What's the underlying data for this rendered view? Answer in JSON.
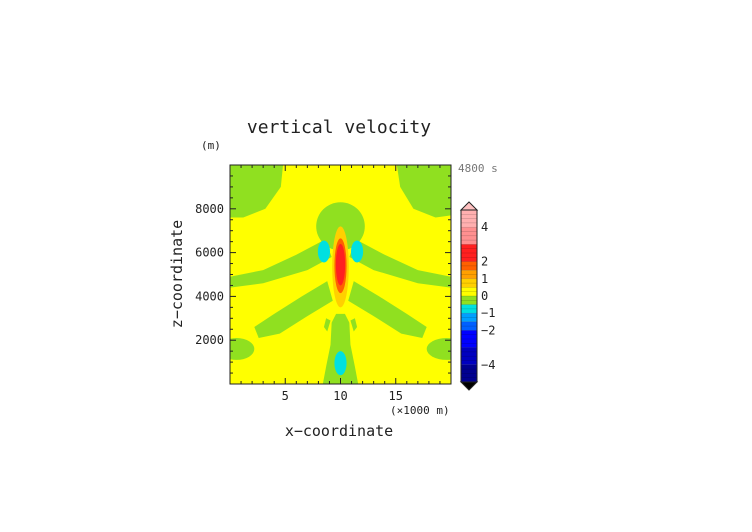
{
  "chart_data": {
    "type": "heatmap",
    "title": "vertical velocity",
    "xlabel": "x−coordinate",
    "ylabel": "z−coordinate",
    "x_unit": "(×1000 m)",
    "y_unit": "(m)",
    "time_label": "4800 s",
    "xlim": [
      0,
      20
    ],
    "ylim": [
      0,
      10000
    ],
    "x_ticks": [
      5,
      10,
      15
    ],
    "y_ticks": [
      2000,
      4000,
      6000,
      8000
    ],
    "x_tick_labels": [
      "5",
      "10",
      "15"
    ],
    "y_tick_labels": [
      "2000",
      "4000",
      "6000",
      "8000"
    ],
    "colorbar": {
      "ticks": [
        4,
        2,
        1,
        0,
        -1,
        -2,
        -4
      ],
      "tick_labels": [
        "4",
        "2",
        "1",
        "0",
        "−1",
        "−2",
        "−4"
      ],
      "levels": [
        {
          "range": [
            5,
            5.5
          ],
          "color": "#ffc0c0"
        },
        {
          "range": [
            4,
            5
          ],
          "color": "#ffb0b0"
        },
        {
          "range": [
            3,
            4
          ],
          "color": "#ff9090"
        },
        {
          "range": [
            2,
            3
          ],
          "color": "#ff2020"
        },
        {
          "range": [
            1.5,
            2
          ],
          "color": "#ff6000"
        },
        {
          "range": [
            1,
            1.5
          ],
          "color": "#ffa000"
        },
        {
          "range": [
            0.5,
            1
          ],
          "color": "#ffd000"
        },
        {
          "range": [
            0,
            0.5
          ],
          "color": "#ffff00"
        },
        {
          "range": [
            -0.5,
            0
          ],
          "color": "#90e020"
        },
        {
          "range": [
            -1,
            -0.5
          ],
          "color": "#00e0e0"
        },
        {
          "range": [
            -1.5,
            -1
          ],
          "color": "#00a0ff"
        },
        {
          "range": [
            -2,
            -1.5
          ],
          "color": "#0060ff"
        },
        {
          "range": [
            -3,
            -2
          ],
          "color": "#0000ff"
        },
        {
          "range": [
            -4,
            -3
          ],
          "color": "#0000c0"
        },
        {
          "range": [
            -5,
            -4
          ],
          "color": "#000090"
        }
      ]
    },
    "features": [
      {
        "kind": "updraft_core",
        "x": 10,
        "z": 5500,
        "w_max": 2.5
      },
      {
        "kind": "weak_updraft_column",
        "x": 10,
        "z_range": [
          3500,
          7200
        ],
        "w": 1
      },
      {
        "kind": "downdraft",
        "x": 8.5,
        "z": 6000,
        "w": -1
      },
      {
        "kind": "downdraft",
        "x": 11.5,
        "z": 6000,
        "w": -1
      },
      {
        "kind": "downdraft",
        "x": 10,
        "z": 900,
        "w": -1
      }
    ],
    "grid": false
  },
  "colors": {
    "background": "#ffffff",
    "positive_weak": "#ffff00",
    "negative_weak": "#90e020"
  }
}
